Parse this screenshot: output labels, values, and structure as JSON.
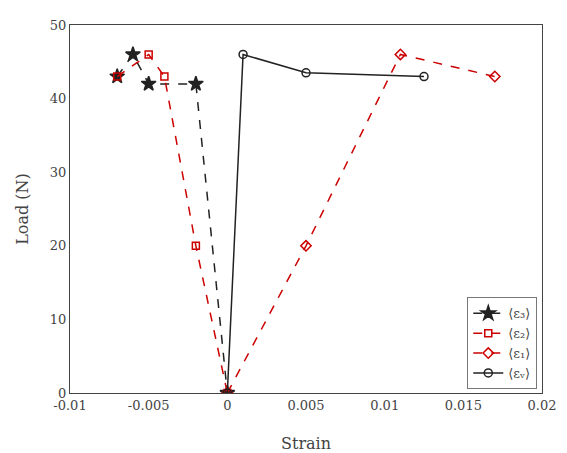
{
  "chart_data": {
    "type": "line",
    "xlabel": "Strain",
    "ylabel": "Load (N)",
    "xlim": [
      -0.01,
      0.02
    ],
    "ylim": [
      0,
      50
    ],
    "xticks": [
      -0.01,
      -0.005,
      0,
      0.005,
      0.01,
      0.015,
      0.02
    ],
    "yticks": [
      0,
      10,
      20,
      30,
      40,
      50
    ],
    "grid": false,
    "legend": "lower right",
    "series": [
      {
        "name": "⟨ε₃⟩",
        "color": "#222222",
        "marker": "star",
        "line_style": "dashed",
        "x": [
          -0.007,
          -0.006,
          -0.005,
          -0.002,
          0.0
        ],
        "values": [
          43.0,
          46.0,
          42.0,
          42.0,
          0.0
        ]
      },
      {
        "name": "⟨ε₂⟩",
        "color": "#cc0000",
        "marker": "square-open",
        "line_style": "dashed",
        "x": [
          -0.007,
          -0.005,
          -0.004,
          -0.002,
          0.0
        ],
        "values": [
          43.0,
          46.0,
          43.0,
          20.0,
          0.0
        ]
      },
      {
        "name": "⟨ε₁⟩",
        "color": "#cc0000",
        "marker": "diamond-open",
        "line_style": "dashed",
        "x": [
          0.0,
          0.005,
          0.011,
          0.017
        ],
        "values": [
          0.0,
          20.0,
          46.0,
          43.0
        ]
      },
      {
        "name": "⟨εᵥ⟩",
        "color": "#222222",
        "marker": "circle-open",
        "line_style": "solid",
        "x": [
          0.0,
          0.001,
          0.005,
          0.0125
        ],
        "values": [
          0.0,
          46.0,
          43.5,
          43.0
        ]
      }
    ]
  }
}
